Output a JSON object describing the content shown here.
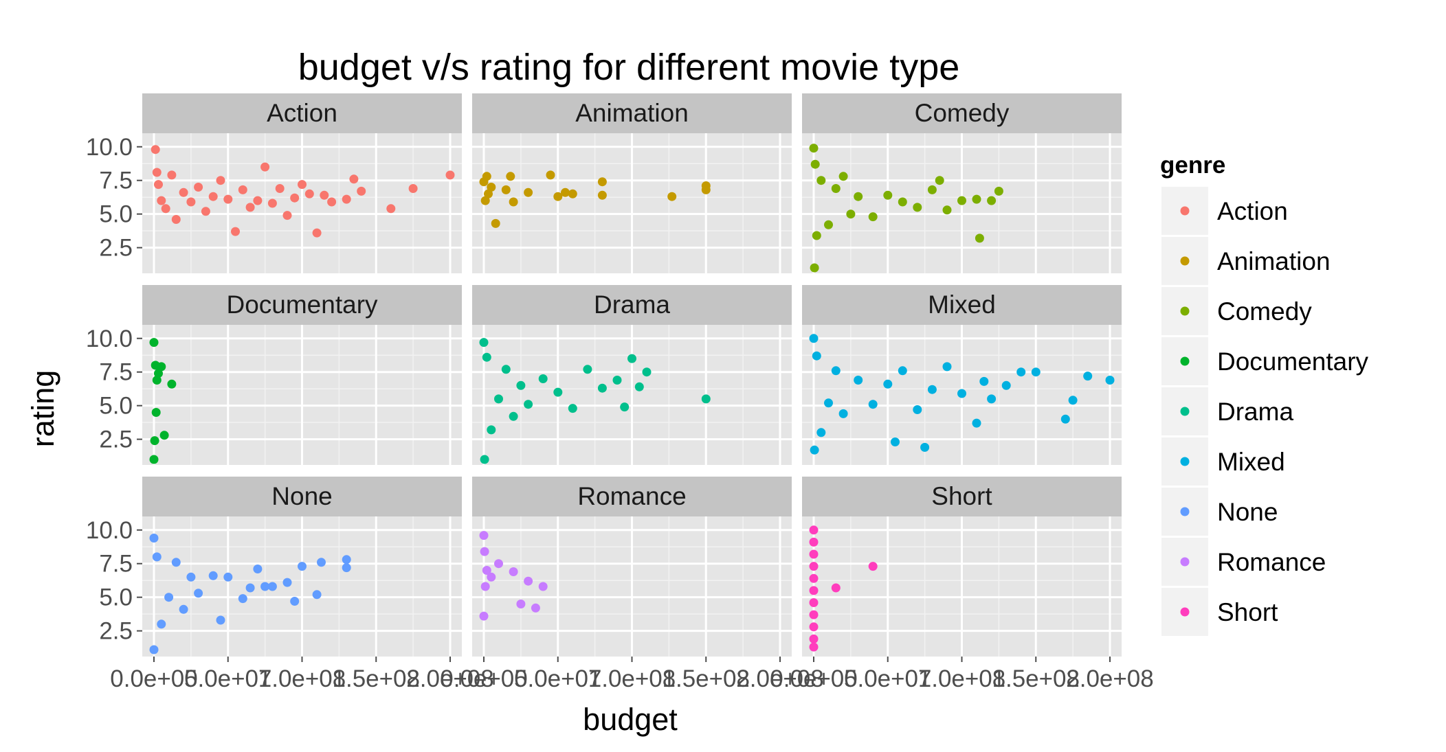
{
  "chart_data": {
    "type": "scatter",
    "title": "budget v/s rating for different movie type",
    "xlabel": "budget",
    "ylabel": "rating",
    "xlim": [
      0,
      200000000
    ],
    "ylim": [
      1,
      10
    ],
    "x_ticks": [
      0,
      50000000,
      100000000,
      150000000,
      200000000
    ],
    "x_tick_labels": [
      "0.0e+00",
      "5.0e+07",
      "1.0e+08",
      "1.5e+08",
      "2.0e+08"
    ],
    "y_ticks": [
      2.5,
      5.0,
      7.5,
      10.0
    ],
    "y_tick_labels": [
      "2.5",
      "5.0",
      "7.5",
      "10.0"
    ],
    "grid": true,
    "facet_layout": "3x3",
    "legend": {
      "title": "genre",
      "placement": "right",
      "entries": [
        {
          "label": "Action",
          "color": "#F8766D"
        },
        {
          "label": "Animation",
          "color": "#C49A00"
        },
        {
          "label": "Comedy",
          "color": "#7CAE00"
        },
        {
          "label": "Documentary",
          "color": "#00B32C"
        },
        {
          "label": "Drama",
          "color": "#00BF8C"
        },
        {
          "label": "Mixed",
          "color": "#00B0E0"
        },
        {
          "label": "None",
          "color": "#619CFF"
        },
        {
          "label": "Romance",
          "color": "#C77CFF"
        },
        {
          "label": "Short",
          "color": "#FF3DBD"
        }
      ]
    },
    "facets": [
      {
        "name": "Action",
        "color": "#F8766D",
        "points": [
          [
            1000000,
            9.8
          ],
          [
            2000000,
            8.1
          ],
          [
            3000000,
            7.2
          ],
          [
            5000000,
            6.0
          ],
          [
            8000000,
            5.4
          ],
          [
            12000000,
            7.9
          ],
          [
            15000000,
            4.6
          ],
          [
            20000000,
            6.6
          ],
          [
            25000000,
            5.9
          ],
          [
            30000000,
            7.0
          ],
          [
            35000000,
            5.2
          ],
          [
            40000000,
            6.3
          ],
          [
            45000000,
            7.5
          ],
          [
            50000000,
            6.1
          ],
          [
            55000000,
            3.7
          ],
          [
            60000000,
            6.8
          ],
          [
            65000000,
            5.5
          ],
          [
            70000000,
            6.0
          ],
          [
            75000000,
            8.5
          ],
          [
            80000000,
            5.8
          ],
          [
            85000000,
            6.9
          ],
          [
            90000000,
            4.9
          ],
          [
            95000000,
            6.2
          ],
          [
            100000000,
            7.2
          ],
          [
            105000000,
            6.5
          ],
          [
            110000000,
            3.6
          ],
          [
            115000000,
            6.4
          ],
          [
            120000000,
            5.9
          ],
          [
            130000000,
            6.1
          ],
          [
            135000000,
            7.6
          ],
          [
            140000000,
            6.7
          ],
          [
            160000000,
            5.4
          ],
          [
            175000000,
            6.9
          ],
          [
            200000000,
            7.9
          ]
        ]
      },
      {
        "name": "Animation",
        "color": "#C49A00",
        "points": [
          [
            0,
            7.4
          ],
          [
            1000000,
            6.0
          ],
          [
            2000000,
            7.8
          ],
          [
            3000000,
            6.5
          ],
          [
            5000000,
            7.0
          ],
          [
            8000000,
            4.3
          ],
          [
            15000000,
            6.8
          ],
          [
            18000000,
            7.8
          ],
          [
            20000000,
            5.9
          ],
          [
            30000000,
            6.6
          ],
          [
            45000000,
            7.9
          ],
          [
            50000000,
            6.3
          ],
          [
            55000000,
            6.6
          ],
          [
            60000000,
            6.5
          ],
          [
            80000000,
            7.4
          ],
          [
            80000000,
            6.4
          ],
          [
            127000000,
            6.3
          ],
          [
            150000000,
            6.8
          ],
          [
            150000000,
            7.1
          ]
        ]
      },
      {
        "name": "Comedy",
        "color": "#7CAE00",
        "points": [
          [
            0,
            9.9
          ],
          [
            500000,
            1.0
          ],
          [
            1000000,
            8.7
          ],
          [
            2000000,
            3.4
          ],
          [
            5000000,
            7.5
          ],
          [
            10000000,
            4.2
          ],
          [
            15000000,
            6.9
          ],
          [
            20000000,
            7.8
          ],
          [
            25000000,
            5.0
          ],
          [
            30000000,
            6.3
          ],
          [
            40000000,
            4.8
          ],
          [
            50000000,
            6.4
          ],
          [
            60000000,
            5.9
          ],
          [
            70000000,
            5.5
          ],
          [
            80000000,
            6.8
          ],
          [
            85000000,
            7.5
          ],
          [
            90000000,
            5.3
          ],
          [
            100000000,
            6.0
          ],
          [
            110000000,
            6.1
          ],
          [
            112000000,
            3.2
          ],
          [
            120000000,
            6.0
          ],
          [
            125000000,
            6.7
          ]
        ]
      },
      {
        "name": "Documentary",
        "color": "#00B32C",
        "points": [
          [
            0,
            9.7
          ],
          [
            0,
            1.0
          ],
          [
            500000,
            2.4
          ],
          [
            1000000,
            8.0
          ],
          [
            1500000,
            4.5
          ],
          [
            2000000,
            6.9
          ],
          [
            3000000,
            7.4
          ],
          [
            5000000,
            7.9
          ],
          [
            7000000,
            2.8
          ],
          [
            12000000,
            6.6
          ]
        ]
      },
      {
        "name": "Drama",
        "color": "#00BF8C",
        "points": [
          [
            0,
            9.7
          ],
          [
            500000,
            1.0
          ],
          [
            2000000,
            8.6
          ],
          [
            5000000,
            3.2
          ],
          [
            10000000,
            5.5
          ],
          [
            15000000,
            7.7
          ],
          [
            20000000,
            4.2
          ],
          [
            25000000,
            6.5
          ],
          [
            30000000,
            5.1
          ],
          [
            40000000,
            7.0
          ],
          [
            50000000,
            6.0
          ],
          [
            60000000,
            4.8
          ],
          [
            70000000,
            7.7
          ],
          [
            80000000,
            6.3
          ],
          [
            90000000,
            6.9
          ],
          [
            95000000,
            4.9
          ],
          [
            100000000,
            8.5
          ],
          [
            105000000,
            6.4
          ],
          [
            110000000,
            7.5
          ],
          [
            150000000,
            5.5
          ]
        ]
      },
      {
        "name": "Mixed",
        "color": "#00B0E0",
        "points": [
          [
            0,
            10.0
          ],
          [
            500000,
            1.7
          ],
          [
            2000000,
            8.7
          ],
          [
            5000000,
            3.0
          ],
          [
            10000000,
            5.2
          ],
          [
            15000000,
            7.6
          ],
          [
            20000000,
            4.4
          ],
          [
            30000000,
            6.9
          ],
          [
            40000000,
            5.1
          ],
          [
            50000000,
            6.6
          ],
          [
            55000000,
            2.3
          ],
          [
            60000000,
            7.6
          ],
          [
            70000000,
            4.7
          ],
          [
            75000000,
            1.9
          ],
          [
            80000000,
            6.2
          ],
          [
            90000000,
            7.9
          ],
          [
            100000000,
            5.9
          ],
          [
            110000000,
            3.7
          ],
          [
            115000000,
            6.8
          ],
          [
            120000000,
            5.5
          ],
          [
            130000000,
            6.5
          ],
          [
            140000000,
            7.5
          ],
          [
            150000000,
            7.5
          ],
          [
            170000000,
            4.0
          ],
          [
            175000000,
            5.4
          ],
          [
            185000000,
            7.2
          ],
          [
            200000000,
            6.9
          ]
        ]
      },
      {
        "name": "None",
        "color": "#619CFF",
        "points": [
          [
            0,
            9.4
          ],
          [
            0,
            1.1
          ],
          [
            2000000,
            8.0
          ],
          [
            5000000,
            3.0
          ],
          [
            10000000,
            5.0
          ],
          [
            15000000,
            7.6
          ],
          [
            20000000,
            4.1
          ],
          [
            25000000,
            6.5
          ],
          [
            30000000,
            5.3
          ],
          [
            40000000,
            6.6
          ],
          [
            45000000,
            3.3
          ],
          [
            50000000,
            6.5
          ],
          [
            60000000,
            4.9
          ],
          [
            65000000,
            5.7
          ],
          [
            70000000,
            7.1
          ],
          [
            75000000,
            5.8
          ],
          [
            80000000,
            5.8
          ],
          [
            90000000,
            6.1
          ],
          [
            95000000,
            4.7
          ],
          [
            100000000,
            7.3
          ],
          [
            110000000,
            5.2
          ],
          [
            113000000,
            7.6
          ],
          [
            130000000,
            7.8
          ],
          [
            130000000,
            7.2
          ]
        ]
      },
      {
        "name": "Romance",
        "color": "#C77CFF",
        "points": [
          [
            0,
            9.6
          ],
          [
            0,
            3.6
          ],
          [
            500000,
            8.4
          ],
          [
            1000000,
            5.8
          ],
          [
            2000000,
            7.0
          ],
          [
            5000000,
            6.5
          ],
          [
            10000000,
            7.5
          ],
          [
            20000000,
            6.9
          ],
          [
            25000000,
            4.5
          ],
          [
            30000000,
            6.2
          ],
          [
            35000000,
            4.2
          ],
          [
            40000000,
            5.8
          ]
        ]
      },
      {
        "name": "Short",
        "color": "#FF3DBD",
        "points": [
          [
            0,
            10.0
          ],
          [
            0,
            9.1
          ],
          [
            0,
            8.2
          ],
          [
            0,
            7.3
          ],
          [
            0,
            6.4
          ],
          [
            0,
            5.5
          ],
          [
            0,
            4.6
          ],
          [
            0,
            3.7
          ],
          [
            0,
            2.8
          ],
          [
            0,
            1.9
          ],
          [
            0,
            1.3
          ],
          [
            15000000,
            5.7
          ],
          [
            40000000,
            7.3
          ]
        ]
      }
    ]
  }
}
